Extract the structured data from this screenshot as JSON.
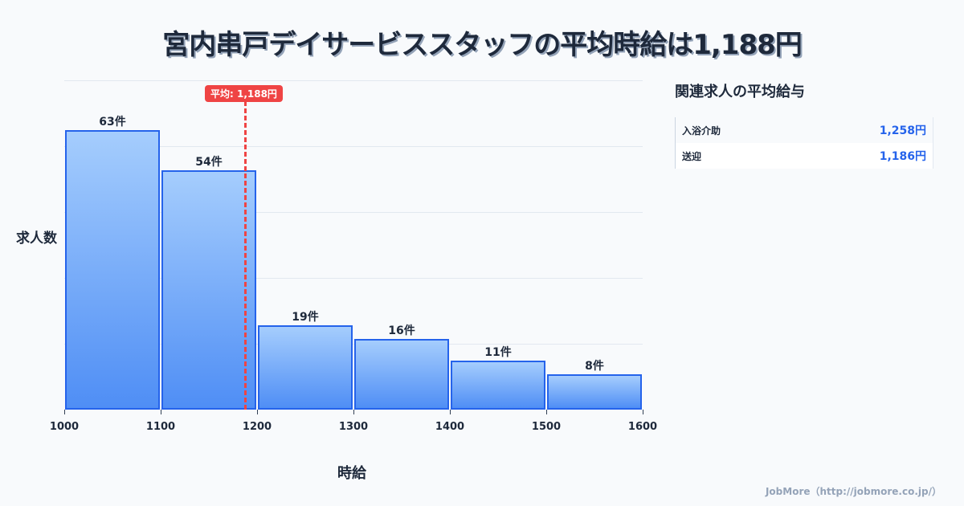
{
  "title": "宮内串戸デイサービススタッフの平均時給は1,188円",
  "chart_data": {
    "type": "bar",
    "title": "宮内串戸デイサービススタッフの平均時給は1,188円",
    "xlabel": "時給",
    "ylabel": "求人数",
    "categories": [
      "1000-1100",
      "1100-1200",
      "1200-1300",
      "1300-1400",
      "1400-1500",
      "1500-1600"
    ],
    "values": [
      63,
      54,
      19,
      16,
      11,
      8
    ],
    "value_labels": [
      "63件",
      "54件",
      "19件",
      "16件",
      "11件",
      "8件"
    ],
    "x_ticks": [
      "1000",
      "1100",
      "1200",
      "1300",
      "1400",
      "1500",
      "1600"
    ],
    "xlim": [
      1000,
      1600
    ],
    "grid": true,
    "average": {
      "value": 1188,
      "label": "平均: 1,188円"
    },
    "bar_color": "#2563eb",
    "average_color": "#ef4444"
  },
  "related": {
    "title": "関連求人の平均給与",
    "items": [
      {
        "label": "入浴介助",
        "value": "1,258円"
      },
      {
        "label": "送迎",
        "value": "1,186円"
      }
    ]
  },
  "footer": "JobMore（http://jobmore.co.jp/）"
}
